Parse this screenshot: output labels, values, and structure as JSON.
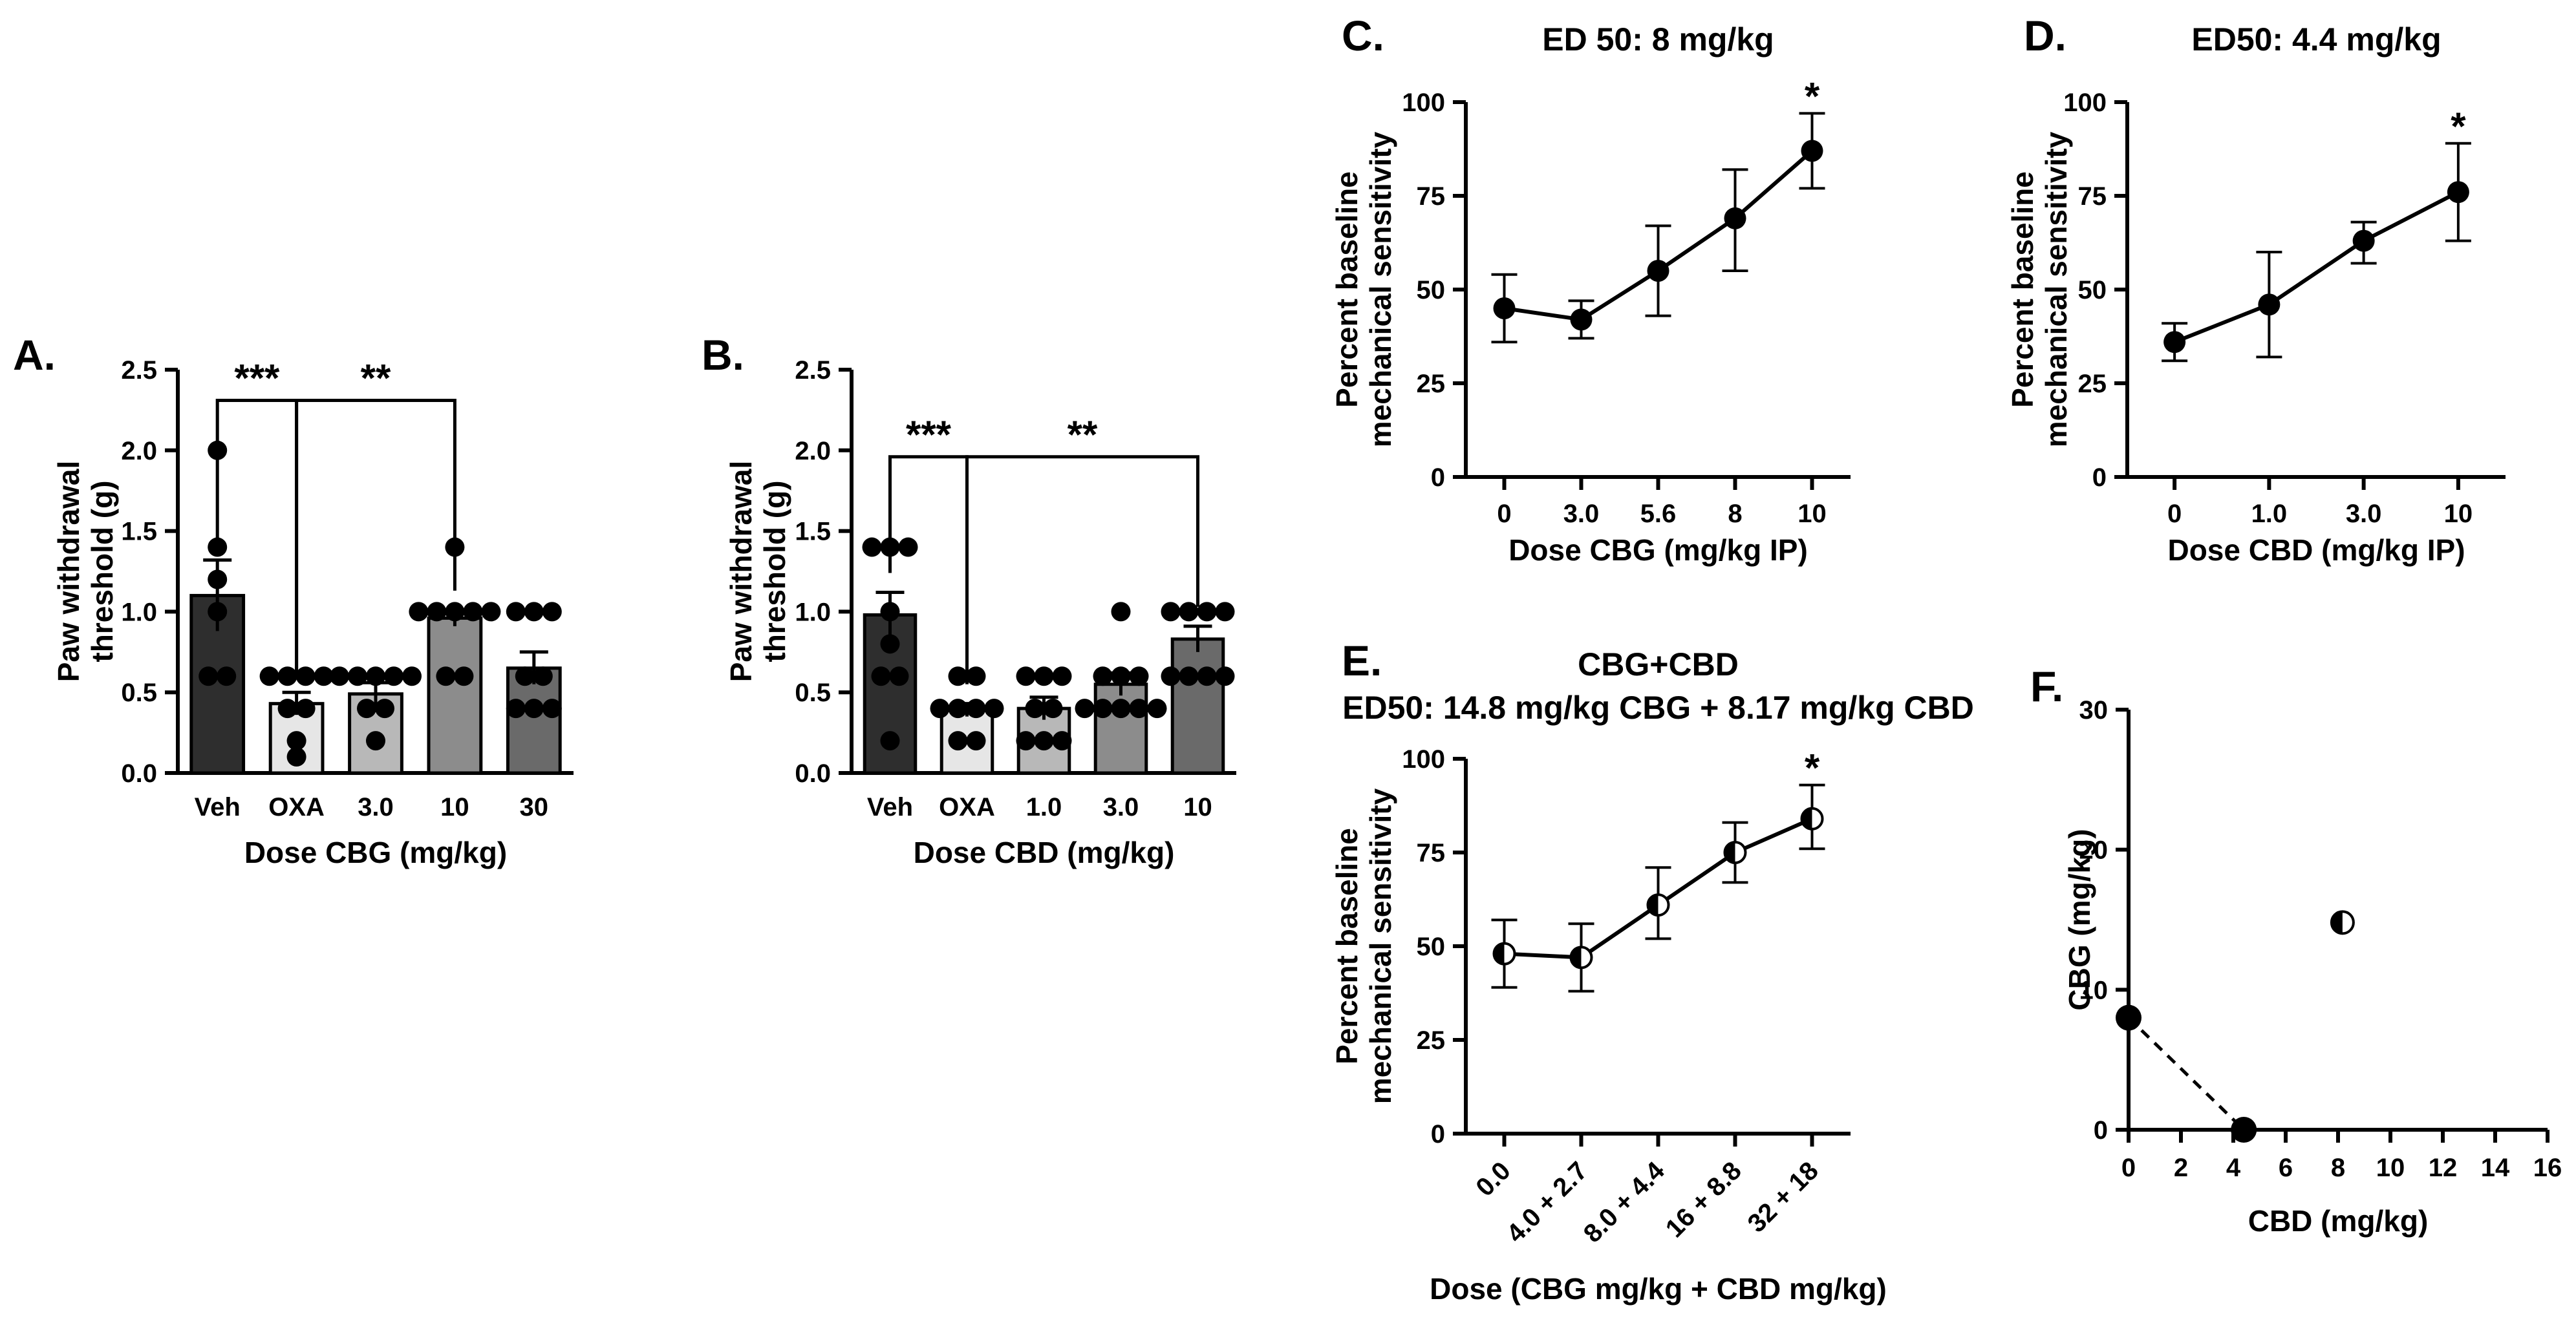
{
  "chart_data": [
    {
      "id": "A",
      "panel_label": "A.",
      "type": "bar",
      "xlabel": "Dose CBG (mg/kg)",
      "ylabel": [
        "Paw withdrawal",
        "threshold (g)"
      ],
      "ylim": [
        0,
        2.5
      ],
      "yticks": [
        "0.0",
        "0.5",
        "1.0",
        "1.5",
        "2.0",
        "2.5"
      ],
      "categories": [
        "Veh",
        "OXA",
        "3.0",
        "10",
        "30"
      ],
      "values": [
        1.1,
        0.43,
        0.49,
        0.96,
        0.65
      ],
      "sem": [
        0.22,
        0.07,
        0.07,
        0.05,
        0.1
      ],
      "bar_colors": [
        "#2e2e2e",
        "#e6e6e6",
        "#b8b8b8",
        "#8c8c8c",
        "#6a6a6a"
      ],
      "points": [
        [
          2.0,
          1.4,
          1.2,
          1.0,
          0.6,
          0.6
        ],
        [
          0.6,
          0.6,
          0.6,
          0.6,
          0.4,
          0.4,
          0.2,
          0.1
        ],
        [
          0.6,
          0.6,
          0.6,
          0.6,
          0.6,
          0.4,
          0.4,
          0.2
        ],
        [
          1.4,
          1.0,
          1.0,
          1.0,
          1.0,
          1.0,
          0.6,
          0.6
        ],
        [
          1.0,
          1.0,
          1.0,
          0.6,
          0.6,
          0.4,
          0.4,
          0.4
        ]
      ],
      "significance": [
        {
          "from": 0,
          "to": 1,
          "label": "***",
          "y": 2.35
        },
        {
          "from": 1,
          "to": 3,
          "label": "**",
          "y": 2.35
        }
      ]
    },
    {
      "id": "B",
      "panel_label": "B.",
      "type": "bar",
      "xlabel": "Dose CBD (mg/kg)",
      "ylabel": [
        "Paw withdrawal",
        "threshold (g)"
      ],
      "ylim": [
        0,
        2.5
      ],
      "yticks": [
        "0.0",
        "0.5",
        "1.0",
        "1.5",
        "2.0",
        "2.5"
      ],
      "categories": [
        "Veh",
        "OXA",
        "1.0",
        "3.0",
        "10"
      ],
      "values": [
        0.98,
        0.39,
        0.4,
        0.55,
        0.83
      ],
      "sem": [
        0.14,
        0.04,
        0.07,
        0.07,
        0.08
      ],
      "bar_colors": [
        "#2e2e2e",
        "#e6e6e6",
        "#b8b8b8",
        "#8c8c8c",
        "#6a6a6a"
      ],
      "points": [
        [
          1.4,
          1.4,
          1.4,
          1.0,
          0.8,
          0.6,
          0.6,
          0.2
        ],
        [
          0.6,
          0.6,
          0.4,
          0.4,
          0.4,
          0.4,
          0.2,
          0.2
        ],
        [
          0.6,
          0.6,
          0.6,
          0.4,
          0.4,
          0.2,
          0.2,
          0.2
        ],
        [
          1.0,
          0.6,
          0.6,
          0.6,
          0.4,
          0.4,
          0.4,
          0.4,
          0.4
        ],
        [
          1.0,
          1.0,
          1.0,
          1.0,
          0.6,
          0.6,
          0.6,
          0.6
        ]
      ],
      "significance": [
        {
          "from": 0,
          "to": 1,
          "label": "***",
          "y": 2.0
        },
        {
          "from": 1,
          "to": 4,
          "label": "**",
          "y": 2.0
        }
      ]
    },
    {
      "id": "C",
      "panel_label": "C.",
      "type": "line",
      "title": [
        "ED 50: 8 mg/kg"
      ],
      "xlabel": [
        "Dose CBG (mg/kg IP)"
      ],
      "ylabel": [
        "Percent baseline",
        "mechanical sensitivity"
      ],
      "ylim": [
        0,
        100
      ],
      "yticks": [
        "0",
        "25",
        "50",
        "75",
        "100"
      ],
      "categories": [
        "0",
        "3.0",
        "5.6",
        "8",
        "10"
      ],
      "values": [
        45,
        42,
        55,
        69,
        87
      ],
      "err_low": [
        36,
        37,
        43,
        55,
        77
      ],
      "err_high": [
        54,
        47,
        67,
        82,
        97
      ],
      "marker": "filled",
      "significance": [
        {
          "index": 4,
          "label": "*"
        }
      ]
    },
    {
      "id": "D",
      "panel_label": "D.",
      "type": "line",
      "title": [
        "ED50: 4.4 mg/kg"
      ],
      "xlabel": [
        "Dose CBD (mg/kg IP)"
      ],
      "ylabel": [
        "Percent baseline",
        "mechanical sensitivity"
      ],
      "ylim": [
        0,
        100
      ],
      "yticks": [
        "0",
        "25",
        "50",
        "75",
        "100"
      ],
      "categories": [
        "0",
        "1.0",
        "3.0",
        "10"
      ],
      "values": [
        36,
        46,
        63,
        76
      ],
      "err_low": [
        31,
        32,
        57,
        63
      ],
      "err_high": [
        41,
        60,
        68,
        89
      ],
      "marker": "filled",
      "significance": [
        {
          "index": 3,
          "label": "*"
        }
      ]
    },
    {
      "id": "E",
      "panel_label": "E.",
      "type": "line",
      "title": [
        "CBG+CBD",
        "ED50: 14.8 mg/kg CBG + 8.17 mg/kg CBD"
      ],
      "xlabel": [
        "Dose (CBG mg/kg + CBD mg/kg)"
      ],
      "ylabel": [
        "Percent baseline",
        "mechanical sensitivity"
      ],
      "ylim": [
        0,
        100
      ],
      "yticks": [
        "0",
        "25",
        "50",
        "75",
        "100"
      ],
      "categories": [
        "0.0",
        "4.0 + 2.7",
        "8.0 + 4.4",
        "16 + 8.8",
        "32 + 18"
      ],
      "values": [
        48,
        47,
        61,
        75,
        84
      ],
      "err_low": [
        39,
        38,
        52,
        67,
        76
      ],
      "err_high": [
        57,
        56,
        71,
        83,
        93
      ],
      "marker": "half",
      "significance": [
        {
          "index": 4,
          "label": "*"
        }
      ]
    },
    {
      "id": "F",
      "panel_label": "F.",
      "type": "scatter",
      "xlabel": "CBD (mg/kg)",
      "ylabel": "CBG (mg/kg)",
      "xlim": [
        0,
        16
      ],
      "ylim": [
        0,
        30
      ],
      "xticks": [
        "0",
        "2",
        "4",
        "6",
        "8",
        "10",
        "12",
        "14",
        "16"
      ],
      "yticks": [
        "0",
        "10",
        "20",
        "30"
      ],
      "points": [
        {
          "x": 0,
          "y": 8,
          "marker": "filled"
        },
        {
          "x": 4.4,
          "y": 0,
          "marker": "filled"
        },
        {
          "x": 8.17,
          "y": 14.8,
          "marker": "half"
        }
      ],
      "additivity_line": {
        "from": [
          0,
          8
        ],
        "to": [
          4.4,
          0
        ],
        "style": "dashed"
      }
    }
  ]
}
